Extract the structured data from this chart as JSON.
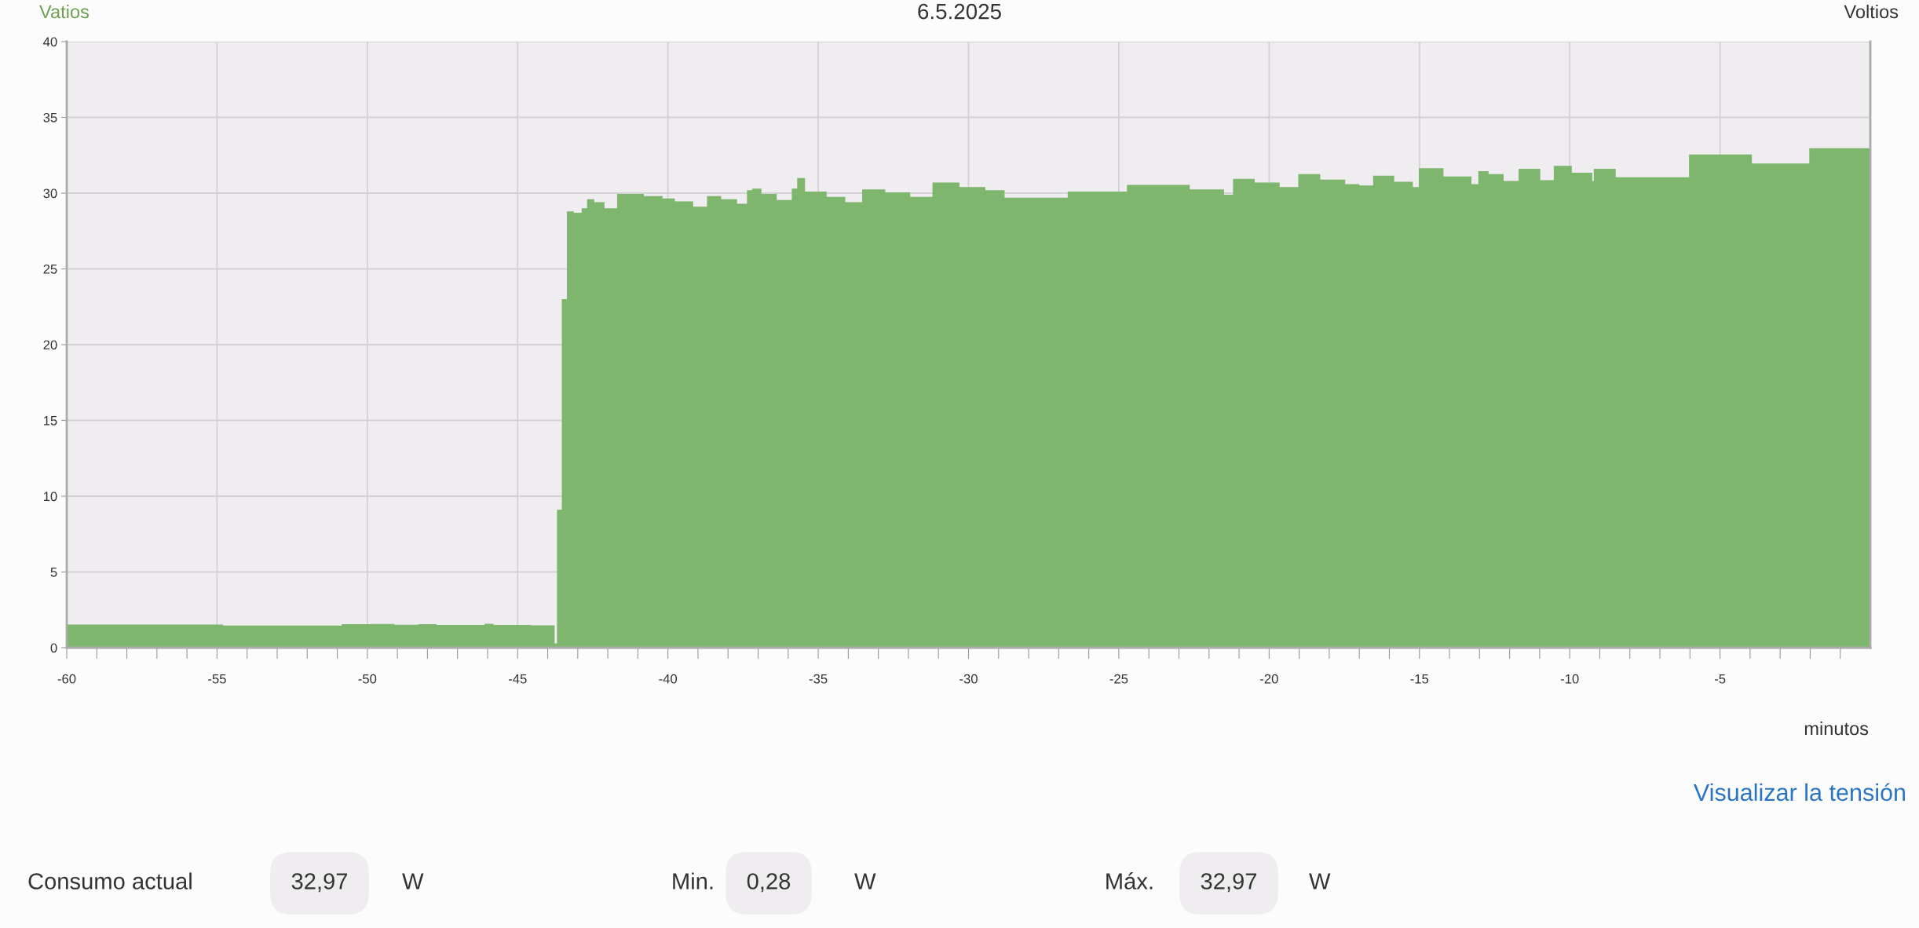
{
  "chart_data": {
    "type": "area",
    "title": "6.5.2025",
    "ylabel": "Vatios",
    "y2label": "Voltios",
    "xlabel": "minutos",
    "annotations": [
      "Visualizar la tensión",
      "Consumo actual",
      "32,97",
      "W",
      "Min.",
      "0,28",
      "W",
      "Máx.",
      "32,97",
      "W"
    ],
    "x": [
      -60,
      -54.8,
      -54.8,
      -50.85,
      -50.85,
      -49.9,
      -49.9,
      -49.1,
      -49.1,
      -48.3,
      -48.3,
      -47.7,
      -47.7,
      -46.1,
      -46.1,
      -45.8,
      -45.8,
      -44.58,
      -44.58,
      -43.77,
      -43.77,
      -43.69,
      -43.69,
      -43.53,
      -43.53,
      -43.36,
      -43.36,
      -43.13,
      -43.13,
      -42.87,
      -42.87,
      -42.69,
      -42.69,
      -42.45,
      -42.45,
      -42.11,
      -42.11,
      -41.69,
      -41.69,
      -40.8,
      -40.8,
      -40.18,
      -40.18,
      -39.77,
      -39.77,
      -39.16,
      -39.16,
      -38.7,
      -38.7,
      -38.23,
      -38.23,
      -37.7,
      -37.7,
      -37.37,
      -37.37,
      -37.2,
      -37.2,
      -36.89,
      -36.89,
      -36.38,
      -36.38,
      -35.88,
      -35.88,
      -35.7,
      -35.7,
      -35.44,
      -35.44,
      -34.72,
      -34.72,
      -34.1,
      -34.1,
      -33.54,
      -33.54,
      -32.77,
      -32.77,
      -31.94,
      -31.94,
      -31.2,
      -31.2,
      -30.3,
      -30.3,
      -29.44,
      -29.44,
      -28.8,
      -28.8,
      -26.7,
      -26.7,
      -24.73,
      -24.73,
      -22.64,
      -22.64,
      -21.5,
      -21.5,
      -21.2,
      -21.2,
      -20.48,
      -20.48,
      -19.65,
      -19.65,
      -19.03,
      -19.03,
      -18.3,
      -18.3,
      -17.47,
      -17.47,
      -17.0,
      -17.0,
      -16.54,
      -16.54,
      -15.84,
      -15.84,
      -15.22,
      -15.22,
      -15.02,
      -15.02,
      -14.2,
      -14.2,
      -13.27,
      -13.27,
      -13.04,
      -13.04,
      -12.7,
      -12.7,
      -12.2,
      -12.2,
      -11.7,
      -11.7,
      -10.98,
      -10.98,
      -10.53,
      -10.53,
      -9.93,
      -9.93,
      -9.25,
      -9.25,
      -9.2,
      -9.2,
      -8.47,
      -8.47,
      -6.03,
      -6.03,
      -3.94,
      -3.94,
      -2.03,
      -2.03,
      0
    ],
    "series": [
      {
        "color": "#7eb66e",
        "values": [
          1.53,
          1.53,
          1.46,
          1.46,
          1.55,
          1.55,
          1.57,
          1.57,
          1.52,
          1.52,
          1.55,
          1.55,
          1.5,
          1.5,
          1.58,
          1.58,
          1.5,
          1.5,
          1.48,
          1.48,
          0.28,
          0.28,
          9.1,
          9.1,
          23.0,
          23.0,
          28.8,
          28.8,
          28.7,
          28.7,
          29.0,
          29.0,
          29.6,
          29.6,
          29.4,
          29.4,
          29.0,
          29.0,
          29.95,
          29.95,
          29.8,
          29.8,
          29.65,
          29.65,
          29.45,
          29.45,
          29.1,
          29.1,
          29.8,
          29.8,
          29.6,
          29.6,
          29.3,
          29.3,
          30.2,
          30.2,
          30.3,
          30.3,
          29.95,
          29.95,
          29.55,
          29.55,
          30.3,
          30.3,
          31.0,
          31.0,
          30.1,
          30.1,
          29.75,
          29.75,
          29.4,
          29.4,
          30.25,
          30.25,
          30.05,
          30.05,
          29.75,
          29.75,
          30.7,
          30.7,
          30.4,
          30.4,
          30.2,
          30.2,
          29.7,
          29.7,
          30.1,
          30.1,
          30.55,
          30.55,
          30.25,
          30.25,
          29.9,
          29.9,
          30.95,
          30.95,
          30.7,
          30.7,
          30.4,
          30.4,
          31.25,
          31.25,
          30.9,
          30.9,
          30.6,
          30.6,
          30.5,
          30.5,
          31.15,
          31.15,
          30.75,
          30.75,
          30.4,
          30.4,
          31.65,
          31.65,
          31.1,
          31.1,
          30.6,
          30.6,
          31.45,
          31.45,
          31.25,
          31.25,
          30.8,
          30.8,
          31.6,
          31.6,
          30.85,
          30.85,
          31.8,
          31.8,
          31.35,
          31.35,
          30.8,
          30.8,
          31.6,
          31.6,
          31.05,
          31.05,
          32.55,
          32.55,
          31.95,
          31.95,
          32.97,
          32.97
        ]
      }
    ],
    "xlim": [
      -60,
      0
    ],
    "ylim": [
      0,
      40
    ],
    "xticks": [
      -60,
      {
        "value": -59,
        "label": null
      },
      {
        "value": -58,
        "label": null
      },
      {
        "value": -57,
        "label": null
      },
      {
        "value": -56,
        "label": null
      },
      -55,
      {
        "value": -54,
        "label": null
      },
      {
        "value": -53,
        "label": null
      },
      {
        "value": -52,
        "label": null
      },
      {
        "value": -51,
        "label": null
      },
      -50,
      {
        "value": -49,
        "label": null
      },
      {
        "value": -48,
        "label": null
      },
      {
        "value": -47,
        "label": null
      },
      {
        "value": -46,
        "label": null
      },
      -45,
      {
        "value": -44,
        "label": null
      },
      {
        "value": -43,
        "label": null
      },
      {
        "value": -42,
        "label": null
      },
      {
        "value": -41,
        "label": null
      },
      -40,
      {
        "value": -39,
        "label": null
      },
      {
        "value": -38,
        "label": null
      },
      {
        "value": -37,
        "label": null
      },
      {
        "value": -36,
        "label": null
      },
      -35,
      {
        "value": -34,
        "label": null
      },
      {
        "value": -33,
        "label": null
      },
      {
        "value": -32,
        "label": null
      },
      {
        "value": -31,
        "label": null
      },
      -30,
      {
        "value": -29,
        "label": null
      },
      {
        "value": -28,
        "label": null
      },
      {
        "value": -27,
        "label": null
      },
      {
        "value": -26,
        "label": null
      },
      -25,
      {
        "value": -24,
        "label": null
      },
      {
        "value": -23,
        "label": null
      },
      {
        "value": -22,
        "label": null
      },
      {
        "value": -21,
        "label": null
      },
      -20,
      {
        "value": -19,
        "label": null
      },
      {
        "value": -18,
        "label": null
      },
      {
        "value": -17,
        "label": null
      },
      {
        "value": -16,
        "label": null
      },
      -15,
      {
        "value": -14,
        "label": null
      },
      {
        "value": -13,
        "label": null
      },
      {
        "value": -12,
        "label": null
      },
      {
        "value": -11,
        "label": null
      },
      -10,
      {
        "value": -9,
        "label": null
      },
      {
        "value": -8,
        "label": null
      },
      {
        "value": -7,
        "label": null
      },
      {
        "value": -6,
        "label": null
      },
      -5,
      {
        "value": -4,
        "label": null
      },
      {
        "value": -3,
        "label": null
      },
      {
        "value": -2,
        "label": null
      },
      {
        "value": -1,
        "label": null
      }
    ],
    "yticks": [
      0,
      5,
      10,
      15,
      20,
      25,
      30,
      35,
      40
    ],
    "grid": true
  }
}
